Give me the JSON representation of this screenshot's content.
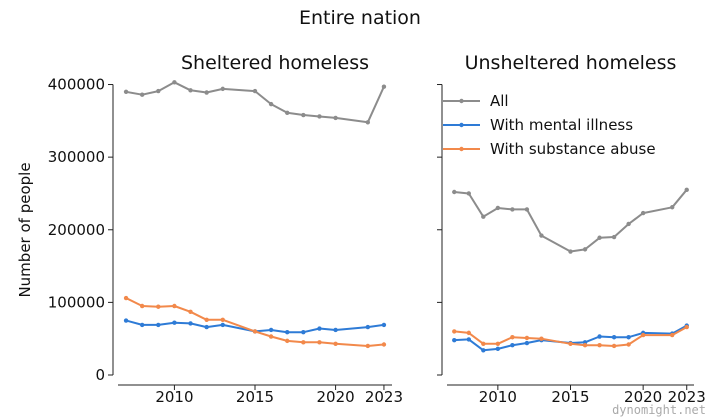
{
  "title": "Entire nation",
  "ylabel": "Number of people",
  "watermark": "dynomight.net",
  "colors": {
    "all": "#8c8c8c",
    "mental": "#2e7bd6",
    "substance": "#f2894b"
  },
  "legend": [
    "All",
    "With mental illness",
    "With substance abuse"
  ],
  "yticks": [
    "0",
    "100000",
    "200000",
    "300000",
    "400000"
  ],
  "xticks": [
    "2010",
    "2015",
    "2020",
    "2023"
  ],
  "chart_data": [
    {
      "type": "line",
      "title": "Sheltered homeless",
      "xlabel": "",
      "ylabel": "Number of people",
      "xlim": [
        2006.5,
        2023.5
      ],
      "ylim": [
        0,
        420000
      ],
      "x": [
        2007,
        2008,
        2009,
        2010,
        2011,
        2012,
        2013,
        2015,
        2016,
        2017,
        2018,
        2019,
        2020,
        2022,
        2023
      ],
      "series": [
        {
          "name": "All",
          "key": "all",
          "values": [
            390000,
            386000,
            391000,
            403000,
            392000,
            389000,
            394000,
            391000,
            373000,
            361000,
            358000,
            356000,
            354000,
            348000,
            397000
          ]
        },
        {
          "name": "With mental illness",
          "key": "mental",
          "values": [
            75000,
            69000,
            69000,
            72000,
            71000,
            66000,
            69000,
            60000,
            62000,
            59000,
            59000,
            64000,
            62000,
            66000,
            69000
          ]
        },
        {
          "name": "With substance abuse",
          "key": "substance",
          "values": [
            106000,
            95000,
            94000,
            95000,
            87000,
            76000,
            76000,
            60000,
            53000,
            47000,
            45000,
            45000,
            43000,
            40000,
            42000
          ]
        }
      ]
    },
    {
      "type": "line",
      "title": "Unsheltered homeless",
      "xlabel": "",
      "ylabel": "",
      "xlim": [
        2006.5,
        2023.5
      ],
      "ylim": [
        0,
        420000
      ],
      "legend_position": "top-right",
      "x": [
        2007,
        2008,
        2009,
        2010,
        2011,
        2012,
        2013,
        2015,
        2016,
        2017,
        2018,
        2019,
        2020,
        2022,
        2023
      ],
      "series": [
        {
          "name": "All",
          "key": "all",
          "values": [
            252000,
            250000,
            218000,
            230000,
            228000,
            228000,
            192000,
            170000,
            173000,
            189000,
            190000,
            208000,
            223000,
            231000,
            255000
          ]
        },
        {
          "name": "With mental illness",
          "key": "mental",
          "values": [
            48000,
            49000,
            34000,
            36000,
            41000,
            44000,
            48000,
            44000,
            45000,
            53000,
            52000,
            52000,
            58000,
            57000,
            68000
          ]
        },
        {
          "name": "With substance abuse",
          "key": "substance",
          "values": [
            60000,
            58000,
            43000,
            43000,
            52000,
            51000,
            50000,
            43000,
            41000,
            41000,
            40000,
            42000,
            55000,
            55000,
            66000
          ]
        }
      ]
    }
  ]
}
